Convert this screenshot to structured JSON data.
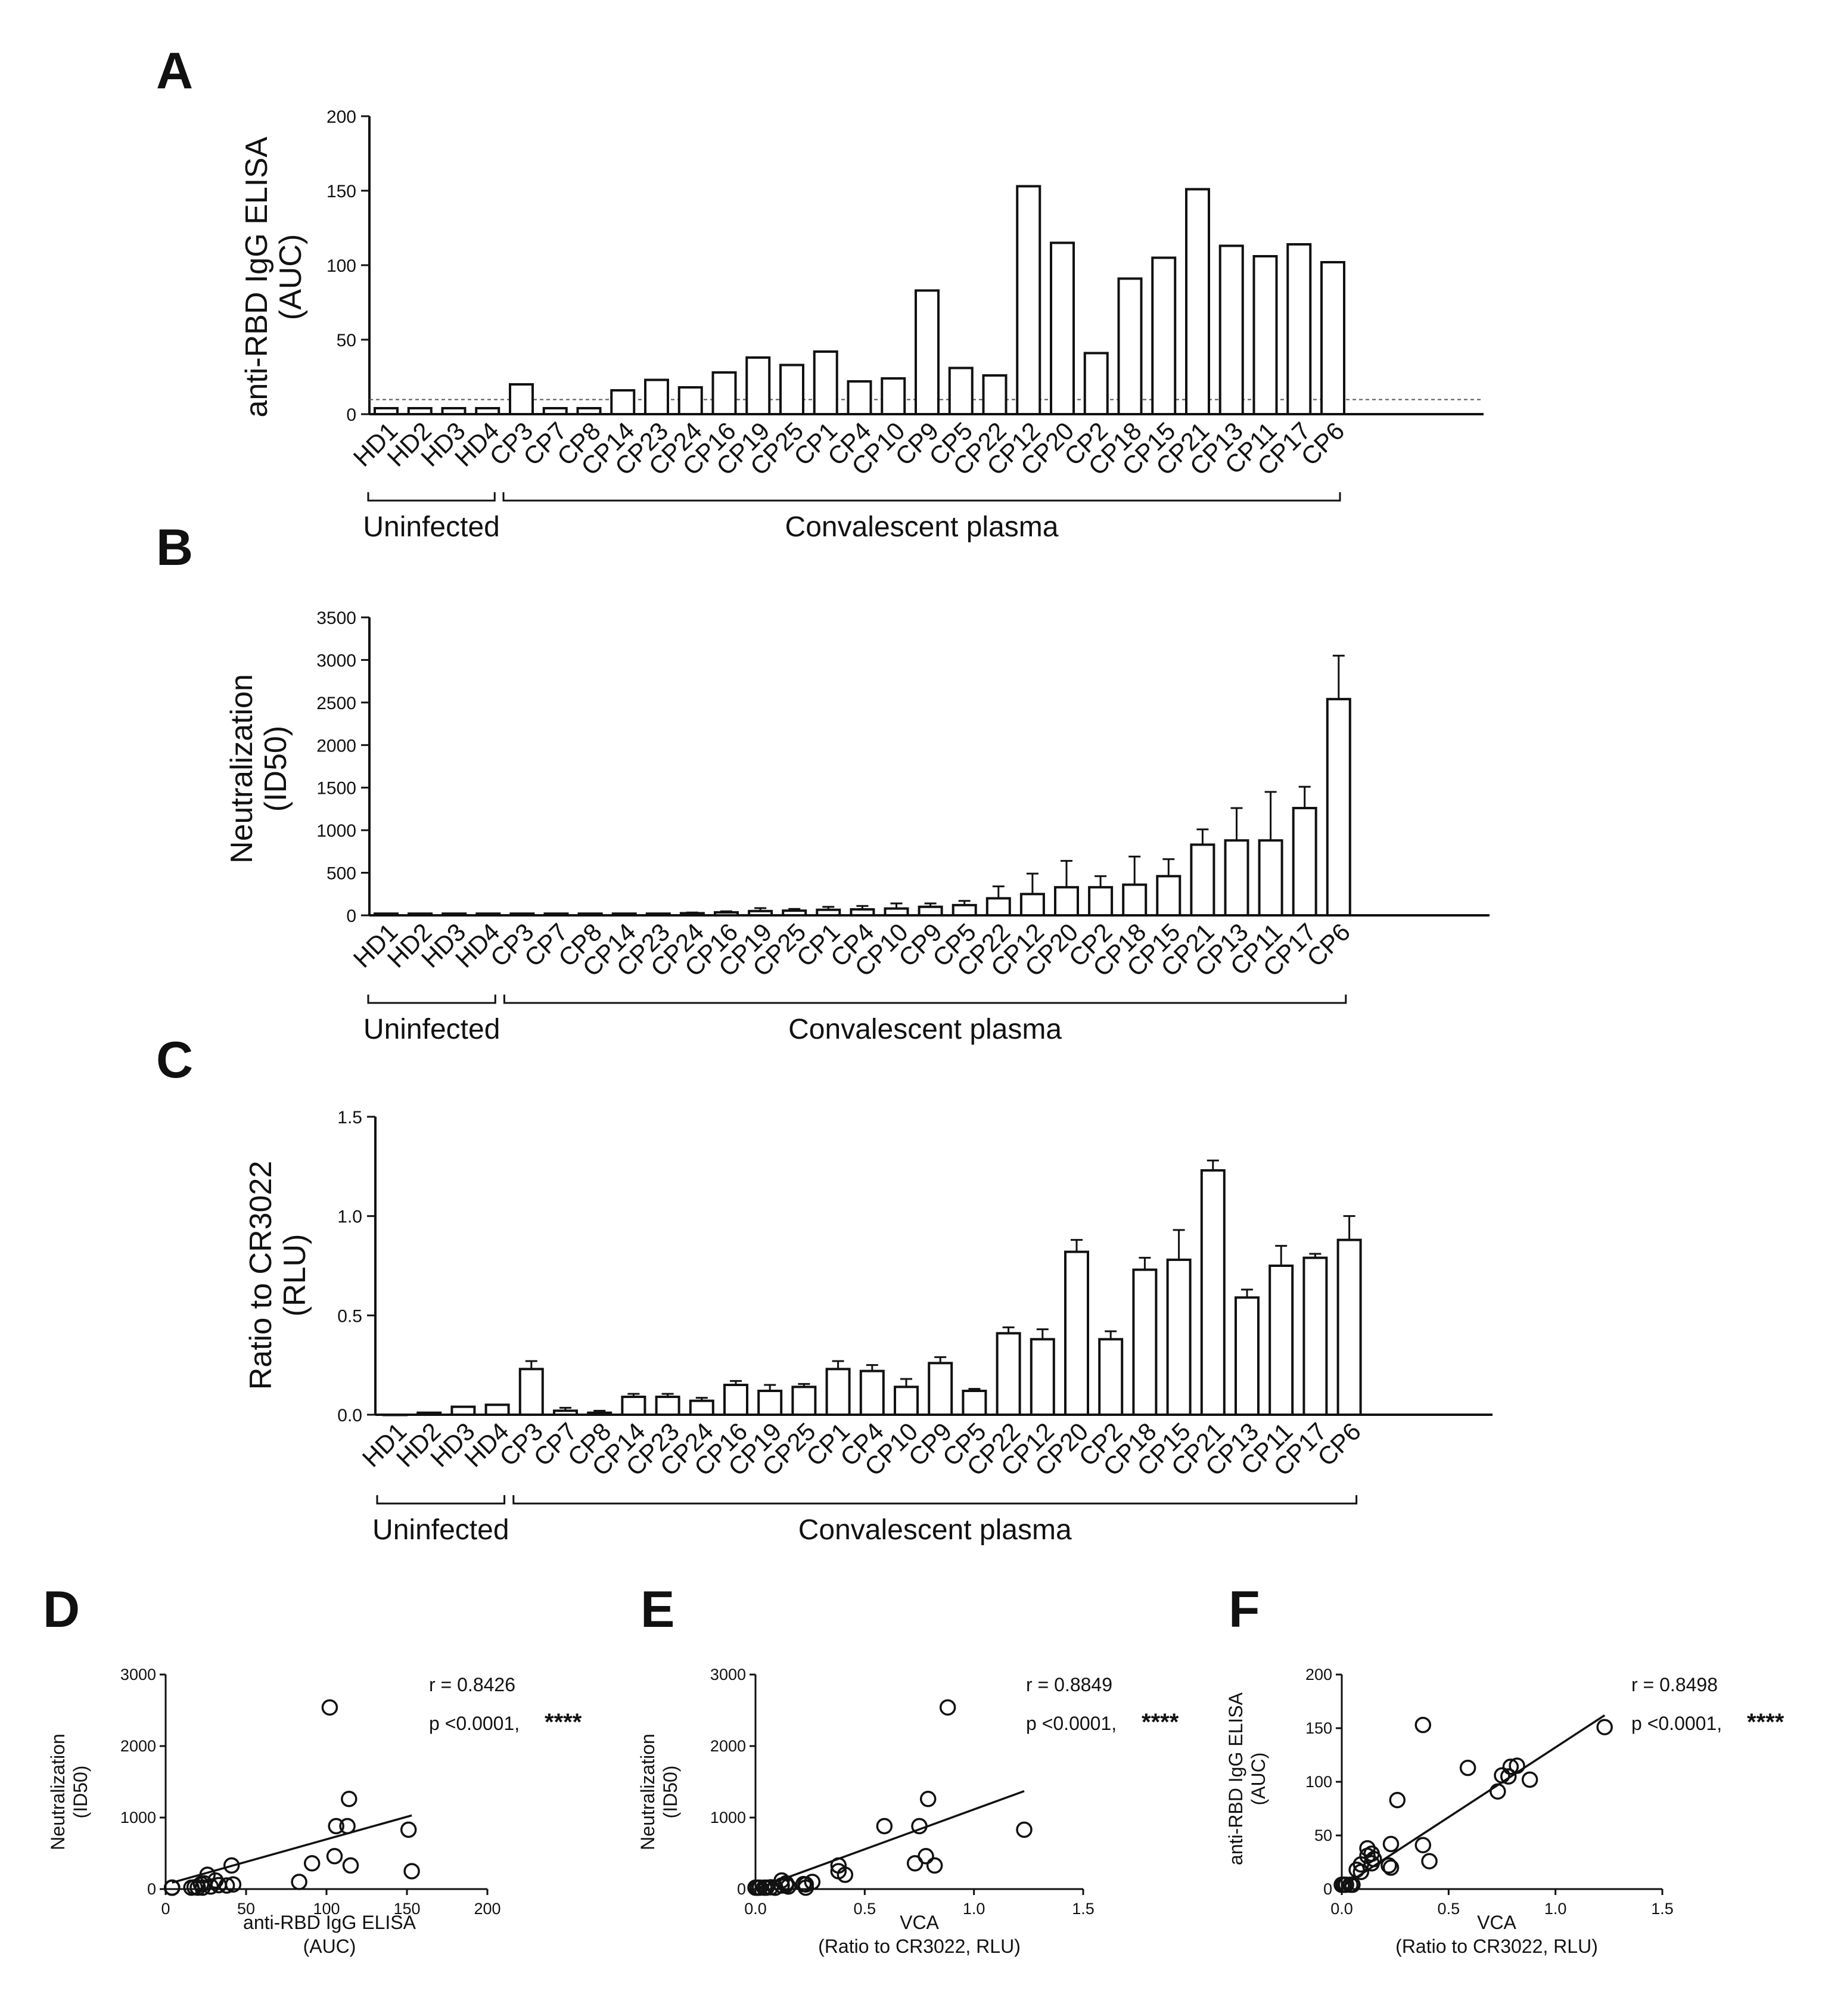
{
  "figure": {
    "panel_labels": [
      "A",
      "B",
      "C",
      "D",
      "E",
      "F"
    ],
    "bar_groups": [
      {
        "label": "Uninfected",
        "first_index": 0,
        "last_index": 3
      },
      {
        "label": "Convalescent plasma",
        "first_index": 4,
        "last_index": 28
      }
    ],
    "threshold_A": 5
  },
  "chart_data": [
    {
      "panel": "A",
      "type": "bar",
      "title": "",
      "xlabel": "",
      "ylabel": [
        "anti-RBD IgG ELISA",
        "(AUC)"
      ],
      "ylim": [
        0,
        200
      ],
      "yticks": [
        0,
        50,
        100,
        150,
        200
      ],
      "categories": [
        "HD1",
        "HD2",
        "HD3",
        "HD4",
        "CP3",
        "CP7",
        "CP8",
        "CP14",
        "CP23",
        "CP24",
        "CP16",
        "CP19",
        "CP25",
        "CP1",
        "CP4",
        "CP10",
        "CP9",
        "CP5",
        "CP22",
        "CP12",
        "CP20",
        "CP2",
        "CP18",
        "CP15",
        "CP21",
        "CP13",
        "CP11",
        "CP17",
        "CP6"
      ],
      "values": [
        4,
        4,
        4,
        4,
        20,
        4,
        4,
        16,
        23,
        18,
        28,
        38,
        33,
        42,
        22,
        24,
        83,
        31,
        26,
        153,
        115,
        41,
        91,
        105,
        151,
        113,
        106,
        114,
        102
      ],
      "reference_line": 5
    },
    {
      "panel": "B",
      "type": "bar",
      "title": "",
      "xlabel": "",
      "ylabel": [
        "Neutralization",
        "(ID50)"
      ],
      "ylim": [
        0,
        3500
      ],
      "yticks": [
        0,
        500,
        1000,
        1500,
        2000,
        2500,
        3000,
        3500
      ],
      "categories": [
        "HD1",
        "HD2",
        "HD3",
        "HD4",
        "CP3",
        "CP7",
        "CP8",
        "CP14",
        "CP23",
        "CP24",
        "CP16",
        "CP19",
        "CP25",
        "CP1",
        "CP4",
        "CP10",
        "CP9",
        "CP5",
        "CP22",
        "CP12",
        "CP20",
        "CP2",
        "CP18",
        "CP15",
        "CP21",
        "CP13",
        "CP11",
        "CP17",
        "CP6"
      ],
      "values": [
        20,
        20,
        20,
        20,
        20,
        20,
        20,
        20,
        20,
        25,
        35,
        50,
        55,
        65,
        70,
        80,
        100,
        120,
        200,
        250,
        330,
        330,
        360,
        460,
        830,
        880,
        880,
        1260,
        2540
      ],
      "errors": [
        0,
        0,
        0,
        0,
        0,
        0,
        0,
        0,
        0,
        8,
        12,
        35,
        20,
        35,
        40,
        60,
        40,
        50,
        140,
        240,
        310,
        130,
        330,
        200,
        180,
        380,
        570,
        250,
        510
      ]
    },
    {
      "panel": "C",
      "type": "bar",
      "title": "",
      "xlabel": "",
      "ylabel": [
        "Ratio to CR3022",
        "(RLU)"
      ],
      "ylim": [
        0,
        1.5
      ],
      "yticks": [
        0.0,
        0.5,
        1.0,
        1.5
      ],
      "ytick_labels": [
        "0.0",
        "0.5",
        "1.0",
        "1.5"
      ],
      "categories": [
        "HD1",
        "HD2",
        "HD3",
        "HD4",
        "CP3",
        "CP7",
        "CP8",
        "CP14",
        "CP23",
        "CP24",
        "CP16",
        "CP19",
        "CP25",
        "CP1",
        "CP4",
        "CP10",
        "CP9",
        "CP5",
        "CP22",
        "CP12",
        "CP20",
        "CP2",
        "CP18",
        "CP15",
        "CP21",
        "CP13",
        "CP11",
        "CP17",
        "CP6"
      ],
      "values": [
        0.0,
        0.01,
        0.04,
        0.05,
        0.23,
        0.02,
        0.01,
        0.09,
        0.09,
        0.07,
        0.15,
        0.12,
        0.14,
        0.23,
        0.22,
        0.14,
        0.26,
        0.12,
        0.41,
        0.38,
        0.82,
        0.38,
        0.73,
        0.78,
        1.23,
        0.59,
        0.75,
        0.79,
        0.88
      ],
      "errors": [
        0,
        0,
        0,
        0,
        0.04,
        0.015,
        0.01,
        0.015,
        0.015,
        0.015,
        0.02,
        0.03,
        0.015,
        0.04,
        0.03,
        0.04,
        0.03,
        0.01,
        0.03,
        0.05,
        0.06,
        0.04,
        0.06,
        0.15,
        0.05,
        0.04,
        0.1,
        0.02,
        0.12
      ]
    },
    {
      "panel": "D",
      "type": "scatter",
      "title": "",
      "xlabel": [
        "anti-RBD IgG ELISA",
        "(AUC)"
      ],
      "ylabel": [
        "Neutralization",
        "(ID50)"
      ],
      "xlim": [
        0,
        200
      ],
      "ylim": [
        0,
        3000
      ],
      "xticks": [
        0,
        50,
        100,
        150,
        200
      ],
      "yticks": [
        0,
        1000,
        2000,
        3000
      ],
      "points": [
        [
          4,
          20
        ],
        [
          4,
          20
        ],
        [
          4,
          20
        ],
        [
          4,
          20
        ],
        [
          20,
          20
        ],
        [
          4,
          20
        ],
        [
          4,
          20
        ],
        [
          16,
          20
        ],
        [
          23,
          20
        ],
        [
          18,
          25
        ],
        [
          28,
          35
        ],
        [
          38,
          50
        ],
        [
          33,
          55
        ],
        [
          42,
          65
        ],
        [
          22,
          70
        ],
        [
          24,
          80
        ],
        [
          83,
          100
        ],
        [
          31,
          120
        ],
        [
          26,
          200
        ],
        [
          153,
          250
        ],
        [
          115,
          330
        ],
        [
          41,
          330
        ],
        [
          91,
          360
        ],
        [
          105,
          460
        ],
        [
          151,
          830
        ],
        [
          113,
          880
        ],
        [
          106,
          880
        ],
        [
          114,
          1260
        ],
        [
          102,
          2540
        ]
      ],
      "fit_line": [
        [
          4,
          90
        ],
        [
          153,
          1030
        ]
      ],
      "stats": {
        "r": "r = 0.8426",
        "p": "p <0.0001,",
        "stars": "****"
      }
    },
    {
      "panel": "E",
      "type": "scatter",
      "title": "",
      "xlabel": [
        "VCA",
        "(Ratio to CR3022, RLU)"
      ],
      "ylabel": [
        "Neutralization",
        "(ID50)"
      ],
      "xlim": [
        0,
        1.5
      ],
      "ylim": [
        0,
        3000
      ],
      "xticks": [
        0.0,
        0.5,
        1.0,
        1.5
      ],
      "xtick_labels": [
        "0.0",
        "0.5",
        "1.0",
        "1.5"
      ],
      "yticks": [
        0,
        1000,
        2000,
        3000
      ],
      "points": [
        [
          0.0,
          20
        ],
        [
          0.01,
          20
        ],
        [
          0.04,
          20
        ],
        [
          0.05,
          20
        ],
        [
          0.23,
          20
        ],
        [
          0.02,
          20
        ],
        [
          0.01,
          20
        ],
        [
          0.09,
          20
        ],
        [
          0.09,
          20
        ],
        [
          0.07,
          25
        ],
        [
          0.15,
          35
        ],
        [
          0.12,
          50
        ],
        [
          0.14,
          55
        ],
        [
          0.23,
          65
        ],
        [
          0.22,
          70
        ],
        [
          0.14,
          80
        ],
        [
          0.26,
          100
        ],
        [
          0.12,
          120
        ],
        [
          0.41,
          200
        ],
        [
          0.38,
          250
        ],
        [
          0.82,
          330
        ],
        [
          0.38,
          330
        ],
        [
          0.73,
          360
        ],
        [
          0.78,
          460
        ],
        [
          1.23,
          830
        ],
        [
          0.59,
          880
        ],
        [
          0.75,
          880
        ],
        [
          0.79,
          1260
        ],
        [
          0.88,
          2540
        ]
      ],
      "fit_line": [
        [
          0.0,
          0
        ],
        [
          1.23,
          1370
        ]
      ],
      "stats": {
        "r": "r = 0.8849",
        "p": "p <0.0001,",
        "stars": "****"
      }
    },
    {
      "panel": "F",
      "type": "scatter",
      "title": "",
      "xlabel": [
        "VCA",
        "(Ratio to CR3022, RLU)"
      ],
      "ylabel": [
        "anti-RBD IgG ELISA",
        "(AUC)"
      ],
      "xlim": [
        0,
        1.5
      ],
      "ylim": [
        0,
        200
      ],
      "xticks": [
        0.0,
        0.5,
        1.0,
        1.5
      ],
      "xtick_labels": [
        "0.0",
        "0.5",
        "1.0",
        "1.5"
      ],
      "yticks": [
        0,
        50,
        100,
        150,
        200
      ],
      "points": [
        [
          0.0,
          4
        ],
        [
          0.01,
          4
        ],
        [
          0.04,
          4
        ],
        [
          0.05,
          4
        ],
        [
          0.23,
          20
        ],
        [
          0.02,
          4
        ],
        [
          0.01,
          4
        ],
        [
          0.09,
          16
        ],
        [
          0.09,
          23
        ],
        [
          0.07,
          18
        ],
        [
          0.15,
          28
        ],
        [
          0.12,
          38
        ],
        [
          0.14,
          33
        ],
        [
          0.23,
          42
        ],
        [
          0.22,
          22
        ],
        [
          0.14,
          24
        ],
        [
          0.26,
          83
        ],
        [
          0.12,
          31
        ],
        [
          0.41,
          26
        ],
        [
          0.38,
          153
        ],
        [
          0.82,
          115
        ],
        [
          0.38,
          41
        ],
        [
          0.73,
          91
        ],
        [
          0.78,
          105
        ],
        [
          1.23,
          151
        ],
        [
          0.59,
          113
        ],
        [
          0.75,
          106
        ],
        [
          0.79,
          114
        ],
        [
          0.88,
          102
        ]
      ],
      "fit_line": [
        [
          0.0,
          2
        ],
        [
          1.23,
          162
        ]
      ],
      "stats": {
        "r": "r = 0.8498",
        "p": "p <0.0001,",
        "stars": "****"
      }
    }
  ]
}
